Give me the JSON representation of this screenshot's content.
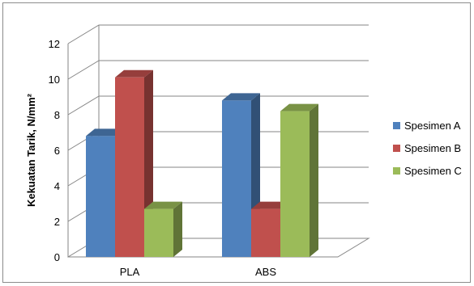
{
  "chart_data": {
    "type": "bar",
    "title": "",
    "xlabel": "",
    "ylabel": "Kekuatan Tarik, N/mm²",
    "categories": [
      "PLA",
      "ABS"
    ],
    "series": [
      {
        "name": "Spesimen A",
        "values": [
          6.8,
          8.8
        ],
        "color": "#4f81bd"
      },
      {
        "name": "Spesimen B",
        "values": [
          10.1,
          2.7
        ],
        "color": "#c0504d"
      },
      {
        "name": "Spesimen C",
        "values": [
          2.7,
          8.2
        ],
        "color": "#9bbb59"
      }
    ],
    "ylim": [
      0,
      12
    ],
    "yticks": [
      "0",
      "2",
      "4",
      "6",
      "8",
      "10",
      "12"
    ],
    "grid": true,
    "legend": "right",
    "style": "3d-clustered-column"
  }
}
